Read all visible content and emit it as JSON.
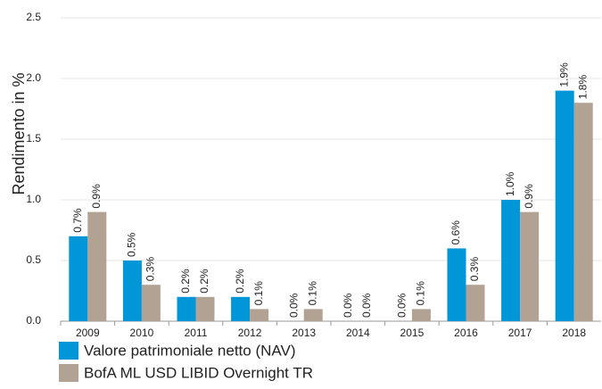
{
  "chart_data": {
    "type": "bar",
    "y_label": "Rendimento in %",
    "categories": [
      "2009",
      "2010",
      "2011",
      "2012",
      "2013",
      "2014",
      "2015",
      "2016",
      "2017",
      "2018"
    ],
    "series": [
      {
        "name": "Valore patrimoniale netto (NAV)",
        "color": "#0096d8",
        "values": [
          0.7,
          0.5,
          0.2,
          0.2,
          0.0,
          0.0,
          0.0,
          0.6,
          1.0,
          1.9
        ],
        "value_labels": [
          "0.7%",
          "0.5%",
          "0.2%",
          "0.2%",
          "0.0%",
          "0.0%",
          "0.0%",
          "0.6%",
          "1.0%",
          "1.9%"
        ]
      },
      {
        "name": "BofA ML USD LIBID Overnight TR",
        "color": "#b1a294",
        "values": [
          0.9,
          0.3,
          0.2,
          0.1,
          0.1,
          0.0,
          0.1,
          0.3,
          0.9,
          1.8
        ],
        "value_labels": [
          "0.9%",
          "0.3%",
          "0.2%",
          "0.1%",
          "0.1%",
          "0.0%",
          "0.1%",
          "0.3%",
          "0.9%",
          "1.8%"
        ]
      }
    ],
    "ylim": [
      0,
      2.5
    ],
    "yticks": [
      {
        "value": 0,
        "label": "0.0"
      },
      {
        "value": 0.5,
        "label": "0.5"
      },
      {
        "value": 1,
        "label": "1.0"
      },
      {
        "value": 1.5,
        "label": "1.5"
      },
      {
        "value": 2,
        "label": "2.0"
      },
      {
        "value": 2.5,
        "label": "2.5"
      }
    ],
    "grid": true,
    "legend": "bottom-left"
  }
}
